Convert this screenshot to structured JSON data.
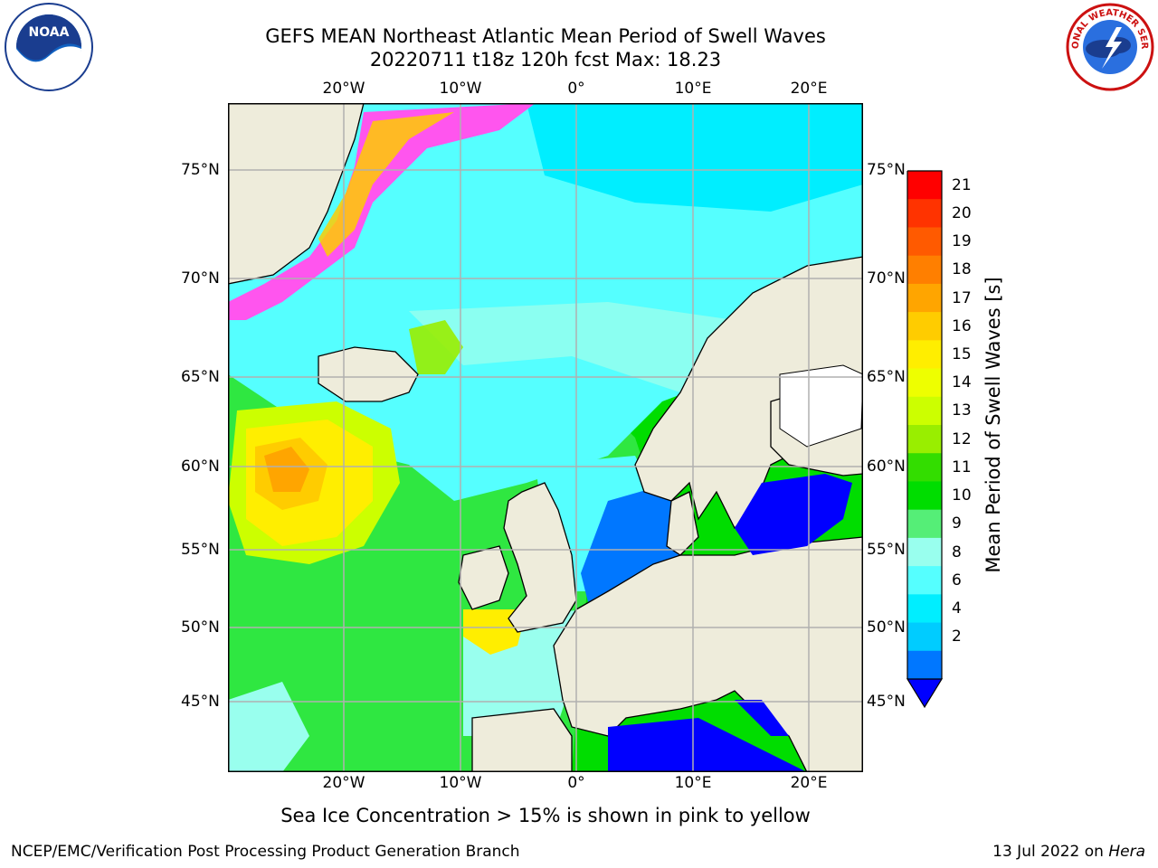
{
  "title": {
    "line1": "GEFS MEAN Northeast Atlantic Mean Period of Swell Waves",
    "line2": "20220711 t18z 120h fcst   Max: 18.23"
  },
  "axes": {
    "lon_labels": [
      "20°W",
      "10°W",
      "0°",
      "10°E",
      "20°E"
    ],
    "lat_labels": [
      "75°N",
      "70°N",
      "65°N",
      "60°N",
      "55°N",
      "50°N",
      "45°N"
    ]
  },
  "colorbar": {
    "label": "Mean Period of Swell Waves [s]",
    "ticks": [
      "21",
      "20",
      "19",
      "18",
      "17",
      "16",
      "15",
      "14",
      "13",
      "12",
      "11",
      "10",
      "9",
      "8",
      "6",
      "4",
      "2"
    ],
    "colors": [
      "#ff0000",
      "#ff3300",
      "#ff5a00",
      "#ff7f00",
      "#ffa500",
      "#ffcc00",
      "#ffee00",
      "#eeff00",
      "#ccff00",
      "#99ee00",
      "#33dd00",
      "#00dd00",
      "#55ee77",
      "#99ffee",
      "#55ffff",
      "#00eeff",
      "#00ccff",
      "#0077ff"
    ],
    "under_color": "#0000ff"
  },
  "footnote": "Sea Ice Concentration > 15% is shown in pink to yellow",
  "footer": {
    "left": "NCEP/EMC/Verification Post Processing Product Generation Branch",
    "date": "13 Jul 2022 on ",
    "machine": "Hera"
  },
  "logos": {
    "noaa_text": "NOAA",
    "nws_text": "NATIONAL WEATHER SERVICE"
  }
}
